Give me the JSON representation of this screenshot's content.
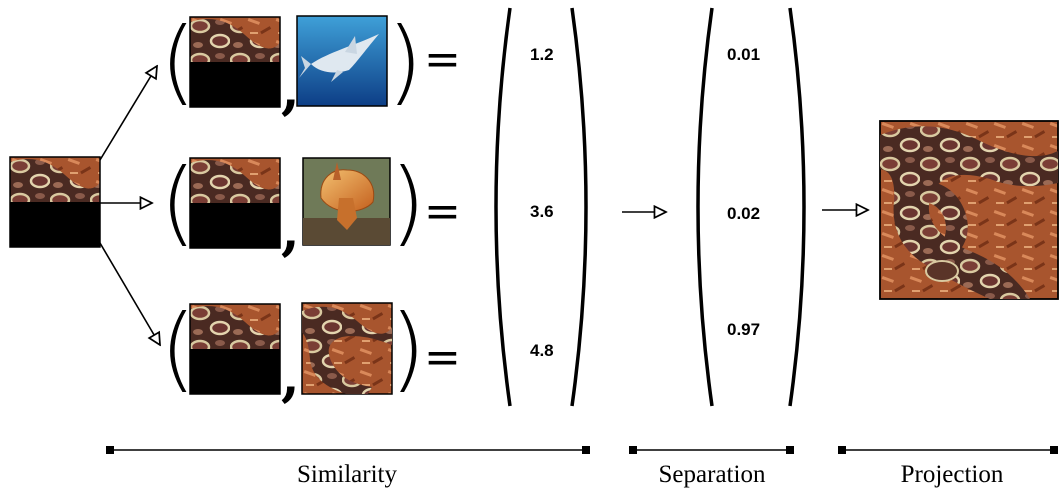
{
  "similarity": {
    "values": [
      "1.2",
      "3.6",
      "4.8"
    ]
  },
  "separation": {
    "values": [
      "0.01",
      "0.02",
      "0.97"
    ]
  },
  "stages": {
    "similarity": "Similarity",
    "separation": "Separation",
    "projection": "Projection"
  },
  "symbols": {
    "equals": "=",
    "comma": ","
  },
  "images": {
    "query": "masked-python-image",
    "candidates": [
      "shark-image",
      "frilled-lizard-image",
      "python-image"
    ],
    "projection": "python-image"
  }
}
